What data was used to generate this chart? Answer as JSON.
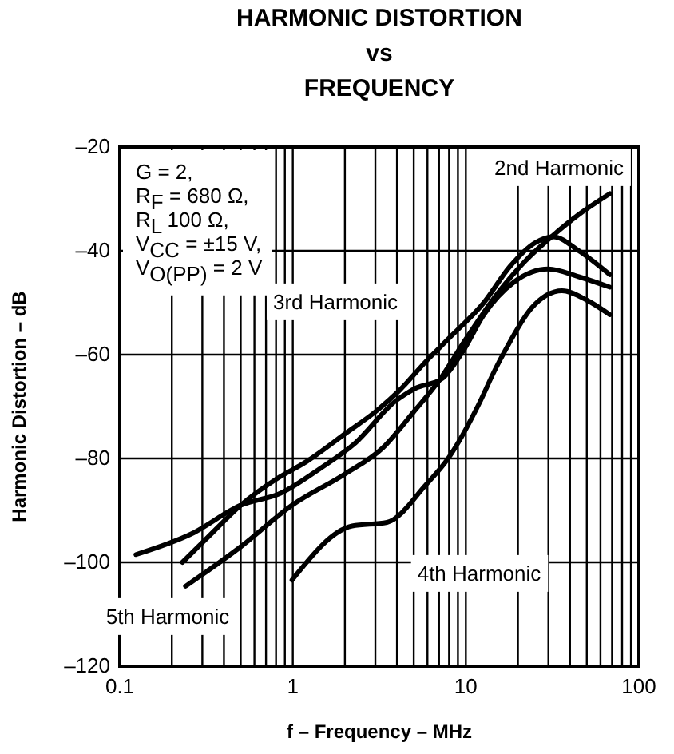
{
  "chart_data": {
    "type": "line",
    "title": "HARMONIC DISTORTION\nvs\nFREQUENCY",
    "xlabel": "f – Frequency – MHz",
    "ylabel": "Harmonic Distortion – dB",
    "log": "x",
    "grid": true,
    "line_style": "solid",
    "xlim": [
      0.1,
      100
    ],
    "ylim": [
      -120,
      -20
    ],
    "xticks": [
      0.1,
      {
        "value": 0.2,
        "label": null
      },
      {
        "value": 0.3,
        "label": null
      },
      {
        "value": 0.4,
        "label": null
      },
      {
        "value": 0.5,
        "label": null
      },
      {
        "value": 0.6,
        "label": null
      },
      {
        "value": 0.7,
        "label": null
      },
      {
        "value": 0.8,
        "label": null
      },
      {
        "value": 0.9,
        "label": null
      },
      1,
      {
        "value": 2,
        "label": null
      },
      {
        "value": 3,
        "label": null
      },
      {
        "value": 4,
        "label": null
      },
      {
        "value": 5,
        "label": null
      },
      {
        "value": 6,
        "label": null
      },
      {
        "value": 7,
        "label": null
      },
      {
        "value": 8,
        "label": null
      },
      {
        "value": 9,
        "label": null
      },
      10,
      {
        "value": 20,
        "label": null
      },
      {
        "value": 30,
        "label": null
      },
      {
        "value": 40,
        "label": null
      },
      {
        "value": 50,
        "label": null
      },
      {
        "value": 60,
        "label": null
      },
      {
        "value": 70,
        "label": null
      },
      {
        "value": 80,
        "label": null
      },
      {
        "value": 90,
        "label": null
      },
      100
    ],
    "yticks": [
      {
        "value": -120,
        "label": "–120"
      },
      {
        "value": -100,
        "label": "–100"
      },
      {
        "value": -80,
        "label": "–80"
      },
      {
        "value": -60,
        "label": "–60"
      },
      {
        "value": -40,
        "label": "–40"
      },
      {
        "value": -20,
        "label": "–20"
      }
    ],
    "series": [
      {
        "color": "#000000",
        "x": [
          0.124,
          0.26,
          0.5,
          0.85,
          1.43,
          2.3,
          3.9,
          5.1,
          7.3,
          9.6,
          12.7,
          19,
          30,
          45,
          68
        ],
        "values": [
          -98.5,
          -94.5,
          -89,
          -86.7,
          -82,
          -77,
          -69,
          -66.5,
          -64.6,
          -59.4,
          -52.3,
          -46,
          -43.5,
          -45,
          -47
        ]
      },
      {
        "color": "#000000",
        "x": [
          0.23,
          0.35,
          0.5,
          0.8,
          1.2,
          2.05,
          3,
          4.1,
          6,
          8.3,
          12.7,
          18,
          25,
          32,
          45,
          68
        ],
        "values": [
          -100,
          -94,
          -89,
          -84,
          -80.6,
          -75,
          -71,
          -67,
          -61,
          -56.3,
          -50,
          -43,
          -38.5,
          -37.3,
          -40,
          -44.6
        ]
      },
      {
        "color": "#000000",
        "x": [
          0.24,
          0.5,
          0.99,
          2,
          3.3,
          5,
          7,
          10,
          15,
          22,
          32,
          45,
          68
        ],
        "values": [
          -104.6,
          -97,
          -89,
          -83,
          -78,
          -71,
          -65,
          -57,
          -48.5,
          -42,
          -37,
          -33,
          -29
        ]
      },
      {
        "color": "#000000",
        "x": [
          0.99,
          2.2,
          3.5,
          5.9,
          7.9,
          11.9,
          14.7,
          17,
          24,
          36,
          50,
          68
        ],
        "values": [
          -103.4,
          -93,
          -92.3,
          -85,
          -80,
          -69.5,
          -63,
          -59,
          -51,
          -47.7,
          -49.5,
          -52.3
        ]
      }
    ],
    "annotations": [
      "2nd Harmonic",
      "3rd Harmonic",
      "4th Harmonic",
      "5th Harmonic",
      "G = 2,",
      "R$_{F}$ = 680 Ω,",
      "R$_{L}$ 100 Ω,",
      "V$_{CC}$ = ±15 V,",
      "V$_{O(PP)}$ = 2 V"
    ]
  }
}
